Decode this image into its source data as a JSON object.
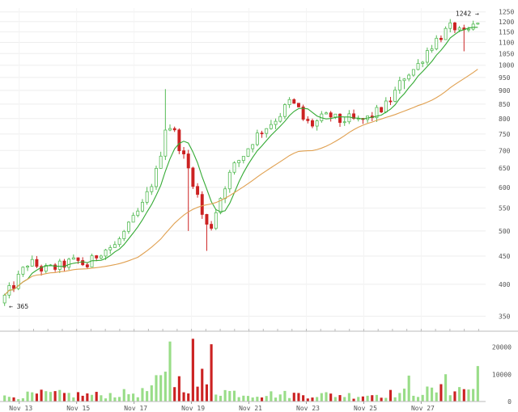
{
  "chart_data": {
    "type": "candlestick",
    "title": "",
    "xlabel": "",
    "ylabel": "",
    "price_axis": {
      "scale": "log",
      "ylim": [
        340,
        1270
      ],
      "ticks": [
        350,
        400,
        450,
        500,
        550,
        600,
        650,
        700,
        750,
        800,
        850,
        900,
        950,
        1000,
        1050,
        1100,
        1150,
        1200,
        1250
      ]
    },
    "volume_axis": {
      "ylim": [
        0,
        24000
      ],
      "ticks": [
        0,
        10000,
        20000
      ]
    },
    "x_ticks": [
      "Nov 13",
      "Nov 15",
      "Nov 17",
      "Nov 19",
      "Nov 21",
      "Nov 23",
      "Nov 25",
      "Nov 27"
    ],
    "x_range_days": [
      12.5,
      29.3
    ],
    "annotations": {
      "low": "365",
      "high": "1242"
    },
    "moving_averages": [
      {
        "color": "#33aa33",
        "period": "short"
      },
      {
        "color": "#e0a050",
        "period": "long"
      }
    ],
    "anchor_closes": [
      [
        12.5,
        370
      ],
      [
        13.0,
        400
      ],
      [
        13.5,
        440
      ],
      [
        14.0,
        425
      ],
      [
        14.5,
        430
      ],
      [
        15.0,
        440
      ],
      [
        15.3,
        440
      ],
      [
        15.5,
        430
      ],
      [
        16.0,
        460
      ],
      [
        16.5,
        470
      ],
      [
        17.0,
        510
      ],
      [
        17.5,
        560
      ],
      [
        18.0,
        650
      ],
      [
        18.3,
        790
      ],
      [
        18.6,
        750
      ],
      [
        18.8,
        700
      ],
      [
        19.0,
        660
      ],
      [
        19.3,
        600
      ],
      [
        19.6,
        520
      ],
      [
        19.8,
        500
      ],
      [
        20.0,
        540
      ],
      [
        20.3,
        600
      ],
      [
        20.6,
        650
      ],
      [
        21.0,
        690
      ],
      [
        21.3,
        730
      ],
      [
        21.6,
        760
      ],
      [
        22.0,
        790
      ],
      [
        22.3,
        820
      ],
      [
        22.6,
        860
      ],
      [
        22.9,
        830
      ],
      [
        23.1,
        790
      ],
      [
        23.4,
        780
      ],
      [
        23.7,
        800
      ],
      [
        24.0,
        810
      ],
      [
        24.3,
        790
      ],
      [
        24.6,
        800
      ],
      [
        25.0,
        790
      ],
      [
        25.3,
        800
      ],
      [
        25.6,
        820
      ],
      [
        26.0,
        850
      ],
      [
        26.3,
        900
      ],
      [
        26.6,
        960
      ],
      [
        27.0,
        990
      ],
      [
        27.3,
        1050
      ],
      [
        27.6,
        1100
      ],
      [
        28.0,
        1150
      ],
      [
        28.3,
        1180
      ],
      [
        28.6,
        1130
      ],
      [
        28.8,
        1150
      ],
      [
        29.0,
        1180
      ],
      [
        29.3,
        1235
      ]
    ],
    "volume_profile": [
      [
        12.5,
        1500
      ],
      [
        14.0,
        3000
      ],
      [
        16.0,
        2500
      ],
      [
        17.5,
        3500
      ],
      [
        18.3,
        9000
      ],
      [
        19.0,
        7000
      ],
      [
        19.6,
        6000
      ],
      [
        20.0,
        4500
      ],
      [
        21.0,
        3000
      ],
      [
        22.0,
        2800
      ],
      [
        23.0,
        2700
      ],
      [
        24.0,
        2600
      ],
      [
        25.0,
        2400
      ],
      [
        26.0,
        3000
      ],
      [
        27.0,
        3500
      ],
      [
        28.0,
        4500
      ],
      [
        29.0,
        5000
      ],
      [
        29.3,
        3000
      ]
    ],
    "volume_spikes": [
      [
        18.5,
        22000
      ],
      [
        19.2,
        23000
      ],
      [
        19.5,
        12000
      ],
      [
        19.8,
        21000
      ],
      [
        26.7,
        9500
      ],
      [
        28.0,
        10000
      ],
      [
        29.1,
        13000
      ]
    ]
  }
}
